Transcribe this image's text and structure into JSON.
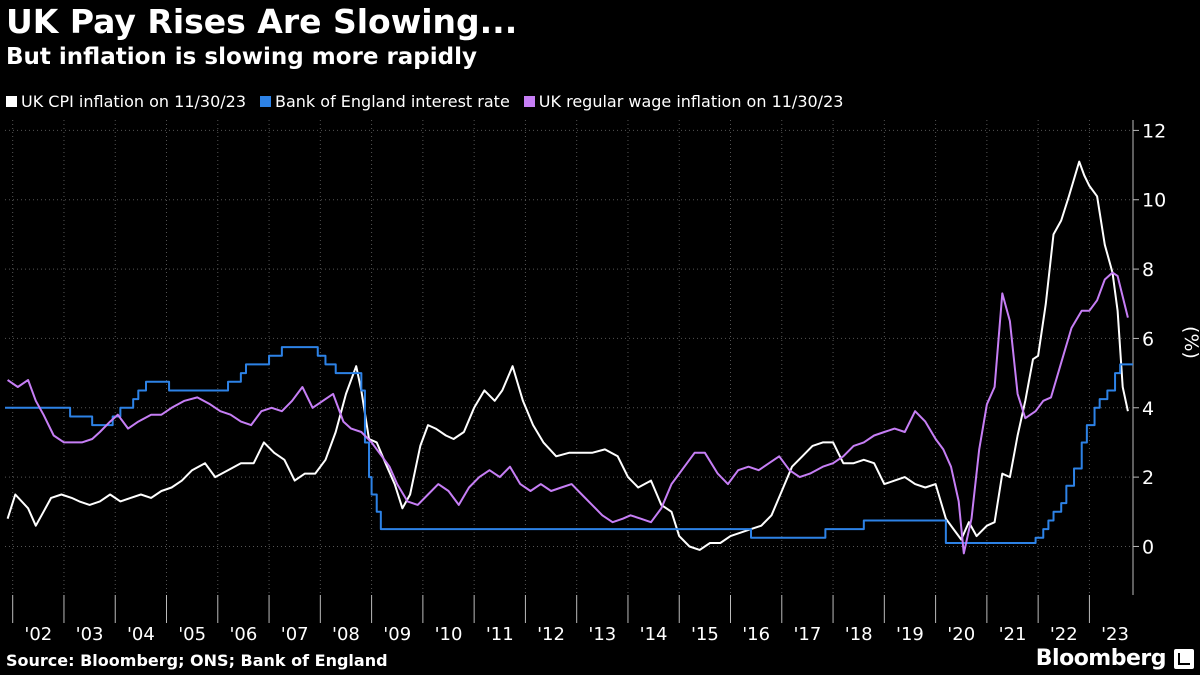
{
  "chart_data": {
    "type": "line",
    "title": "UK Pay Rises Are Slowing...",
    "subtitle": "But inflation is slowing more rapidly",
    "ylabel": "(%)",
    "ylim": [
      -1.4,
      12.3
    ],
    "yticks": [
      0,
      2,
      4,
      6,
      8,
      10,
      12
    ],
    "xlim": [
      2001.85,
      2023.85
    ],
    "x_tick_labels": [
      "'02",
      "'03",
      "'04",
      "'05",
      "'06",
      "'07",
      "'08",
      "'09",
      "'10",
      "'11",
      "'12",
      "'13",
      "'14",
      "'15",
      "'16",
      "'17",
      "'18",
      "'19",
      "'20",
      "'21",
      "'22",
      "'23"
    ],
    "grid": true,
    "legend_placement": "top-left",
    "source": "Source: Bloomberg; ONS; Bank of England",
    "series": [
      {
        "name": "UK CPI inflation on 11/30/23",
        "color": "#ffffff",
        "step": false,
        "x": [
          2001.9,
          2002.05,
          2002.3,
          2002.45,
          2002.6,
          2002.75,
          2002.95,
          2003.15,
          2003.3,
          2003.5,
          2003.7,
          2003.9,
          2004.1,
          2004.3,
          2004.5,
          2004.7,
          2004.9,
          2005.1,
          2005.3,
          2005.5,
          2005.75,
          2005.95,
          2006.2,
          2006.45,
          2006.7,
          2006.9,
          2007.1,
          2007.3,
          2007.5,
          2007.7,
          2007.9,
          2008.1,
          2008.3,
          2008.5,
          2008.7,
          2008.8,
          2008.95,
          2009.1,
          2009.3,
          2009.45,
          2009.6,
          2009.75,
          2009.85,
          2009.95,
          2010.1,
          2010.25,
          2010.45,
          2010.6,
          2010.8,
          2011.0,
          2011.2,
          2011.4,
          2011.55,
          2011.75,
          2011.95,
          2012.15,
          2012.35,
          2012.6,
          2012.85,
          2013.05,
          2013.3,
          2013.55,
          2013.8,
          2014.0,
          2014.2,
          2014.45,
          2014.65,
          2014.85,
          2015.0,
          2015.2,
          2015.4,
          2015.6,
          2015.8,
          2016.0,
          2016.2,
          2016.4,
          2016.6,
          2016.8,
          2017.0,
          2017.2,
          2017.4,
          2017.6,
          2017.8,
          2018.0,
          2018.2,
          2018.4,
          2018.6,
          2018.8,
          2019.0,
          2019.2,
          2019.4,
          2019.6,
          2019.8,
          2020.0,
          2020.2,
          2020.35,
          2020.5,
          2020.65,
          2020.8,
          2021.0,
          2021.15,
          2021.3,
          2021.45,
          2021.6,
          2021.75,
          2021.9,
          2022.0,
          2022.15,
          2022.3,
          2022.45,
          2022.6,
          2022.8,
          2022.9,
          2023.0,
          2023.15,
          2023.3,
          2023.45,
          2023.55,
          2023.65,
          2023.75
        ],
        "values": [
          0.8,
          1.5,
          1.1,
          0.6,
          1.0,
          1.4,
          1.5,
          1.4,
          1.3,
          1.2,
          1.3,
          1.5,
          1.3,
          1.4,
          1.5,
          1.4,
          1.6,
          1.7,
          1.9,
          2.2,
          2.4,
          2.0,
          2.2,
          2.4,
          2.4,
          3.0,
          2.7,
          2.5,
          1.9,
          2.1,
          2.1,
          2.5,
          3.3,
          4.4,
          5.2,
          4.5,
          3.1,
          3.0,
          2.3,
          1.8,
          1.1,
          1.5,
          2.2,
          2.9,
          3.5,
          3.4,
          3.2,
          3.1,
          3.3,
          4.0,
          4.5,
          4.2,
          4.5,
          5.2,
          4.2,
          3.5,
          3.0,
          2.6,
          2.7,
          2.7,
          2.7,
          2.8,
          2.6,
          2.0,
          1.7,
          1.9,
          1.2,
          1.0,
          0.3,
          0.0,
          -0.1,
          0.1,
          0.1,
          0.3,
          0.4,
          0.5,
          0.6,
          0.9,
          1.6,
          2.3,
          2.6,
          2.9,
          3.0,
          3.0,
          2.4,
          2.4,
          2.5,
          2.4,
          1.8,
          1.9,
          2.0,
          1.8,
          1.7,
          1.8,
          0.8,
          0.5,
          0.2,
          0.7,
          0.3,
          0.6,
          0.7,
          2.1,
          2.0,
          3.2,
          4.2,
          5.4,
          5.5,
          7.0,
          9.0,
          9.4,
          10.1,
          11.1,
          10.7,
          10.4,
          10.1,
          8.7,
          7.9,
          6.8,
          4.6,
          3.9
        ]
      },
      {
        "name": "Bank of England interest rate",
        "color": "#2d82e6",
        "step": true,
        "x": [
          2001.85,
          2003.12,
          2003.55,
          2003.95,
          2004.1,
          2004.35,
          2004.45,
          2004.6,
          2005.05,
          2006.2,
          2006.45,
          2006.55,
          2007.0,
          2007.25,
          2007.5,
          2007.95,
          2008.1,
          2008.3,
          2008.8,
          2008.87,
          2008.95,
          2009.0,
          2009.1,
          2009.18,
          2016.1,
          2016.4,
          2017.85,
          2018.6,
          2020.2,
          2020.3,
          2021.95,
          2022.1,
          2022.2,
          2022.3,
          2022.45,
          2022.55,
          2022.7,
          2022.85,
          2022.95,
          2023.1,
          2023.2,
          2023.35,
          2023.5,
          2023.6
        ],
        "values": [
          4.0,
          3.75,
          3.5,
          3.75,
          4.0,
          4.25,
          4.5,
          4.75,
          4.5,
          4.75,
          5.0,
          5.25,
          5.5,
          5.75,
          5.75,
          5.5,
          5.25,
          5.0,
          4.5,
          3.0,
          2.0,
          1.5,
          1.0,
          0.5,
          0.5,
          0.25,
          0.5,
          0.75,
          0.1,
          0.1,
          0.25,
          0.5,
          0.75,
          1.0,
          1.25,
          1.75,
          2.25,
          3.0,
          3.5,
          4.0,
          4.25,
          4.5,
          5.0,
          5.25
        ],
        "end_x": 2023.85
      },
      {
        "name": "UK regular wage inflation on 11/30/23",
        "color": "#c67ef5",
        "step": false,
        "x": [
          2001.9,
          2002.1,
          2002.3,
          2002.45,
          2002.6,
          2002.8,
          2003.0,
          2003.2,
          2003.35,
          2003.55,
          2003.7,
          2003.9,
          2004.05,
          2004.25,
          2004.45,
          2004.7,
          2004.9,
          2005.1,
          2005.35,
          2005.6,
          2005.85,
          2006.05,
          2006.25,
          2006.45,
          2006.65,
          2006.85,
          2007.05,
          2007.25,
          2007.45,
          2007.65,
          2007.85,
          2008.05,
          2008.25,
          2008.45,
          2008.6,
          2008.8,
          2009.0,
          2009.15,
          2009.35,
          2009.5,
          2009.7,
          2009.9,
          2010.1,
          2010.3,
          2010.5,
          2010.7,
          2010.9,
          2011.1,
          2011.3,
          2011.5,
          2011.7,
          2011.9,
          2012.1,
          2012.3,
          2012.5,
          2012.7,
          2012.9,
          2013.1,
          2013.3,
          2013.5,
          2013.7,
          2013.9,
          2014.05,
          2014.25,
          2014.45,
          2014.65,
          2014.85,
          2015.05,
          2015.3,
          2015.5,
          2015.75,
          2015.95,
          2016.15,
          2016.35,
          2016.55,
          2016.75,
          2016.95,
          2017.15,
          2017.35,
          2017.55,
          2017.8,
          2018.0,
          2018.2,
          2018.4,
          2018.6,
          2018.8,
          2019.0,
          2019.2,
          2019.4,
          2019.6,
          2019.8,
          2020.0,
          2020.15,
          2020.3,
          2020.45,
          2020.55,
          2020.7,
          2020.85,
          2021.0,
          2021.15,
          2021.3,
          2021.45,
          2021.6,
          2021.75,
          2021.95,
          2022.1,
          2022.25,
          2022.45,
          2022.65,
          2022.85,
          2023.0,
          2023.15,
          2023.3,
          2023.45,
          2023.55,
          2023.75
        ],
        "values": [
          4.8,
          4.6,
          4.8,
          4.2,
          3.8,
          3.2,
          3.0,
          3.0,
          3.0,
          3.1,
          3.3,
          3.6,
          3.8,
          3.4,
          3.6,
          3.8,
          3.8,
          4.0,
          4.2,
          4.3,
          4.1,
          3.9,
          3.8,
          3.6,
          3.5,
          3.9,
          4.0,
          3.9,
          4.2,
          4.6,
          4.0,
          4.2,
          4.4,
          3.6,
          3.4,
          3.3,
          3.0,
          2.7,
          2.3,
          1.8,
          1.3,
          1.2,
          1.5,
          1.8,
          1.6,
          1.2,
          1.7,
          2.0,
          2.2,
          2.0,
          2.3,
          1.8,
          1.6,
          1.8,
          1.6,
          1.7,
          1.8,
          1.5,
          1.2,
          0.9,
          0.7,
          0.8,
          0.9,
          0.8,
          0.7,
          1.1,
          1.8,
          2.2,
          2.7,
          2.7,
          2.1,
          1.8,
          2.2,
          2.3,
          2.2,
          2.4,
          2.6,
          2.2,
          2.0,
          2.1,
          2.3,
          2.4,
          2.6,
          2.9,
          3.0,
          3.2,
          3.3,
          3.4,
          3.3,
          3.9,
          3.6,
          3.1,
          2.8,
          2.3,
          1.3,
          -0.2,
          0.8,
          2.8,
          4.1,
          4.6,
          7.3,
          6.5,
          4.4,
          3.7,
          3.9,
          4.2,
          4.3,
          5.3,
          6.3,
          6.8,
          6.8,
          7.1,
          7.7,
          7.9,
          7.8,
          6.6
        ]
      }
    ]
  }
}
